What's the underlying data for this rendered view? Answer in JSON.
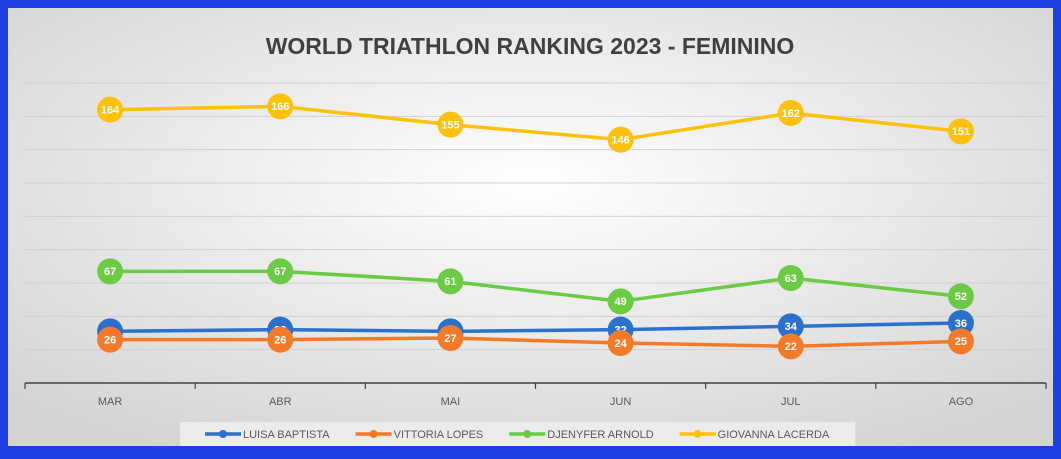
{
  "chart_data": {
    "type": "line",
    "title": "WORLD TRIATHLON RANKING 2023 - FEMININO",
    "categories": [
      "MAR",
      "ABR",
      "MAI",
      "JUN",
      "JUL",
      "AGO"
    ],
    "series": [
      {
        "name": "LUISA BAPTISTA",
        "color": "#2a70cc",
        "values": [
          31,
          32,
          31,
          32,
          34,
          36
        ]
      },
      {
        "name": "VITTORIA LOPES",
        "color": "#f47a2a",
        "values": [
          26,
          26,
          27,
          24,
          22,
          25
        ]
      },
      {
        "name": "DJENYFER ARNOLD",
        "color": "#6ccb45",
        "values": [
          67,
          67,
          61,
          49,
          63,
          52
        ]
      },
      {
        "name": "GIOVANNA LACERDA",
        "color": "#ffc10a",
        "values": [
          164,
          166,
          155,
          146,
          162,
          151
        ]
      }
    ],
    "ylim": [
      0,
      180
    ],
    "yticks": [
      0,
      20,
      40,
      60,
      80,
      100,
      120,
      140,
      160,
      180
    ],
    "grid": true,
    "legend": "bottom"
  }
}
